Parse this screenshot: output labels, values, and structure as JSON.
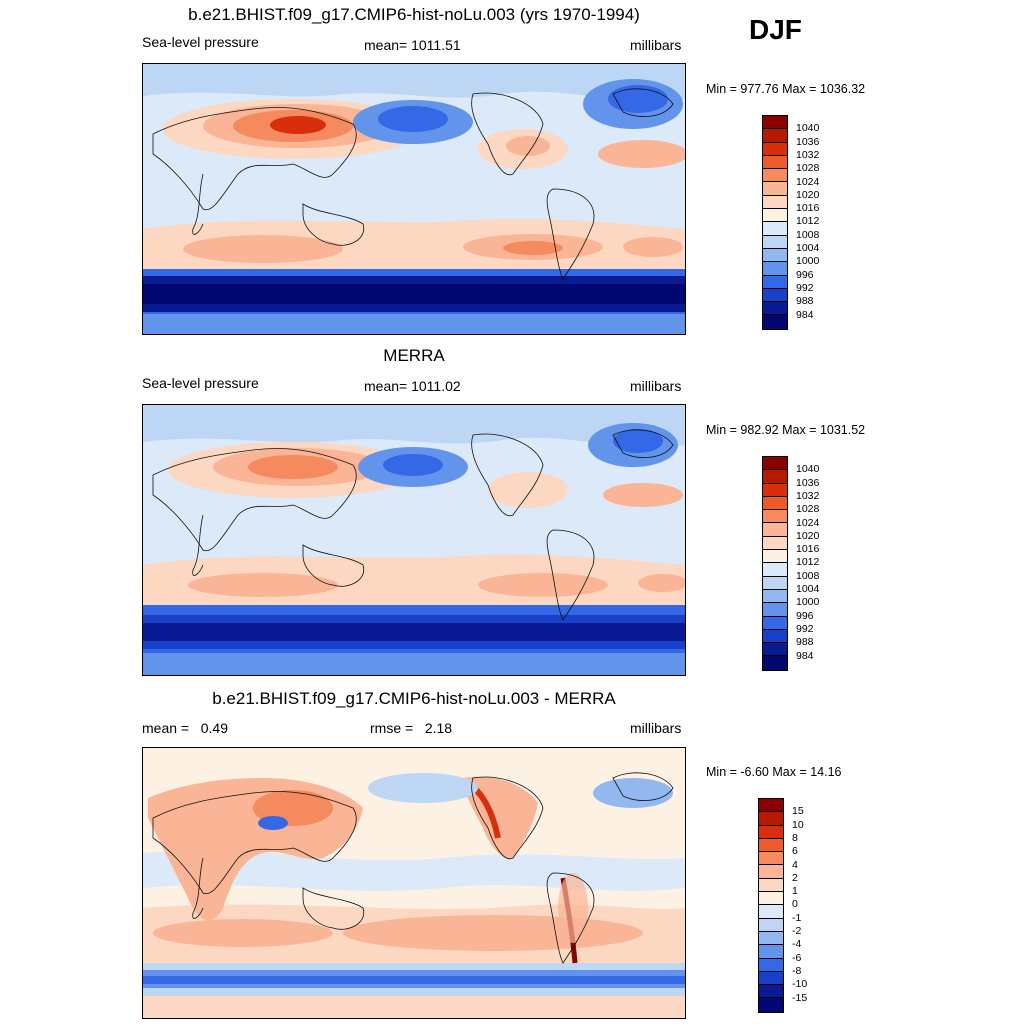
{
  "season": "DJF",
  "panels": [
    {
      "title": "b.e21.BHIST.f09_g17.CMIP6-hist-noLu.003 (yrs 1970-1994)",
      "left_label": "Sea-level pressure",
      "center_label": "mean= 1011.51",
      "right_label": "millibars",
      "minmax": "Min = 977.76 Max = 1036.32",
      "legend": {
        "levels": [
          "1040",
          "1036",
          "1032",
          "1028",
          "1024",
          "1020",
          "1016",
          "1012",
          "1008",
          "1004",
          "1000",
          "996",
          "992",
          "988",
          "984"
        ],
        "colors": [
          "#8b0000",
          "#b51a00",
          "#d92e0b",
          "#ef5a2b",
          "#f58a5e",
          "#f9b596",
          "#fcd8c3",
          "#fdf1e4",
          "#dbe9f9",
          "#bcd6f4",
          "#92b8ef",
          "#6394eb",
          "#3468e6",
          "#1840c9",
          "#0a1a92",
          "#030870"
        ]
      }
    },
    {
      "title": "MERRA",
      "left_label": "Sea-level pressure",
      "center_label": "mean= 1011.02",
      "right_label": "millibars",
      "minmax": "Min = 982.92 Max = 1031.52",
      "legend": {
        "levels": [
          "1040",
          "1036",
          "1032",
          "1028",
          "1024",
          "1020",
          "1016",
          "1012",
          "1008",
          "1004",
          "1000",
          "996",
          "992",
          "988",
          "984"
        ],
        "colors": [
          "#8b0000",
          "#b51a00",
          "#d92e0b",
          "#ef5a2b",
          "#f58a5e",
          "#f9b596",
          "#fcd8c3",
          "#fdf1e4",
          "#dbe9f9",
          "#bcd6f4",
          "#92b8ef",
          "#6394eb",
          "#3468e6",
          "#1840c9",
          "#0a1a92",
          "#030870"
        ]
      }
    },
    {
      "title": "b.e21.BHIST.f09_g17.CMIP6-hist-noLu.003 - MERRA",
      "left_label": "mean =   0.49",
      "center_label": "rmse =   2.18",
      "right_label": "millibars",
      "minmax": "Min =  -6.60 Max =  14.16",
      "legend": {
        "levels": [
          "15",
          "10",
          "8",
          "6",
          "4",
          "2",
          "1",
          "0",
          "-1",
          "-2",
          "-4",
          "-6",
          "-8",
          "-10",
          "-15"
        ],
        "colors": [
          "#8b0000",
          "#b51a00",
          "#d92e0b",
          "#ef5a2b",
          "#f58a5e",
          "#f9b596",
          "#fcd8c3",
          "#fdf1e4",
          "#dbe9f9",
          "#bcd6f4",
          "#92b8ef",
          "#6394eb",
          "#3468e6",
          "#1840c9",
          "#0a1a92",
          "#030870"
        ]
      }
    }
  ]
}
